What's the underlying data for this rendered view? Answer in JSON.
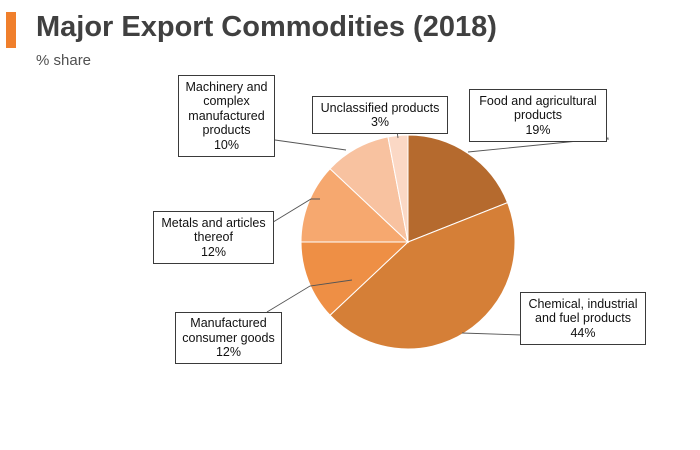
{
  "header": {
    "title": "Major Export Commodities (2018)",
    "subtitle": "% share",
    "accent_color": "#F07F2C"
  },
  "chart_data": {
    "type": "pie",
    "title": "Major Export Commodities (2018)",
    "subtitle": "% share",
    "unit": "%",
    "start": "12 o'clock, clockwise",
    "slices": [
      {
        "key": "food",
        "name_lines": [
          "Food and agricultural",
          "products"
        ],
        "value": 19,
        "label": "19%",
        "color": "#B56A2E"
      },
      {
        "key": "chemical",
        "name_lines": [
          "Chemical, industrial",
          "and fuel products"
        ],
        "value": 44,
        "label": "44%",
        "color": "#D57F37"
      },
      {
        "key": "manufactured",
        "name_lines": [
          "Manufactured",
          "consumer goods"
        ],
        "value": 12,
        "label": "12%",
        "color": "#EE8F45"
      },
      {
        "key": "metals",
        "name_lines": [
          "Metals and articles",
          "thereof"
        ],
        "value": 12,
        "label": "12%",
        "color": "#F6A86F"
      },
      {
        "key": "machinery",
        "name_lines": [
          "Machinery and",
          "complex",
          "manufactured",
          "products"
        ],
        "value": 10,
        "label": "10%",
        "color": "#F8C2A0"
      },
      {
        "key": "unclassified",
        "name_lines": [
          "Unclassified products"
        ],
        "value": 3,
        "label": "3%",
        "color": "#FBD8C5"
      }
    ]
  }
}
